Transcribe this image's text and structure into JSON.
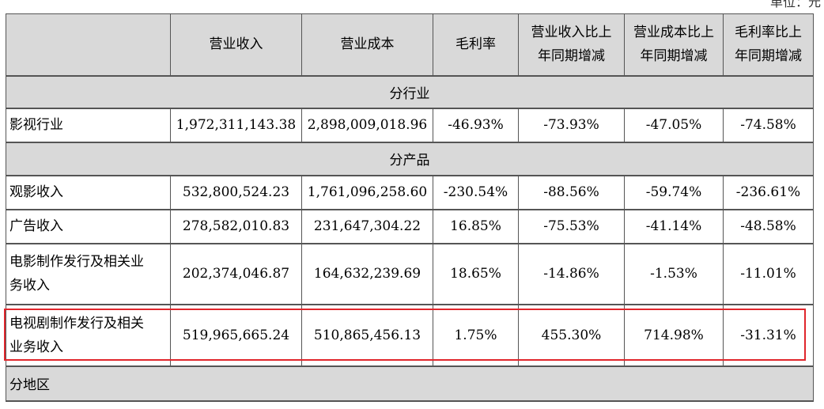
{
  "unit_label": "单位：元",
  "header": {
    "col0": "",
    "col1": "营业收入",
    "col2": "营业成本",
    "col3": "毛利率",
    "col4_line1": "营业收入比上",
    "col4_line2": "年同期增减",
    "col5_line1": "营业成本比上",
    "col5_line2": "年同期增减",
    "col6_line1": "毛利率比上",
    "col6_line2": "年同期增减"
  },
  "section_industry": "分行业",
  "row_film": [
    "影视行业",
    "1,972,311,143.38",
    "2,898,009,018.96",
    "-46.93%",
    "-73.93%",
    "-47.05%",
    "-74.58%"
  ],
  "section_product": "分产品",
  "row_box": [
    "观影收入",
    "532,800,524.23",
    "1,761,096,258.60",
    "-230.54%",
    "-88.56%",
    "-59.74%",
    "-236.61%"
  ],
  "row_ad": [
    "广告收入",
    "278,582,010.83",
    "231,647,304.22",
    "16.85%",
    "-75.53%",
    "-41.14%",
    "-48.58%"
  ],
  "row_movie_line1": "电影制作发行及相关业",
  "row_movie_line2": "务收入",
  "row_movie": [
    "202,374,046.87",
    "164,632,239.69",
    "18.65%",
    "-14.86%",
    "-1.53%",
    "-11.01%"
  ],
  "row_tv_line1": "电视剧制作发行及相关",
  "row_tv_line2": "业务收入",
  "row_tv": [
    "519,965,665.24",
    "510,865,456.13",
    "1.75%",
    "455.30%",
    "714.98%",
    "-31.31%"
  ],
  "section_region": "分地区",
  "highlight_color": "#e0262c"
}
